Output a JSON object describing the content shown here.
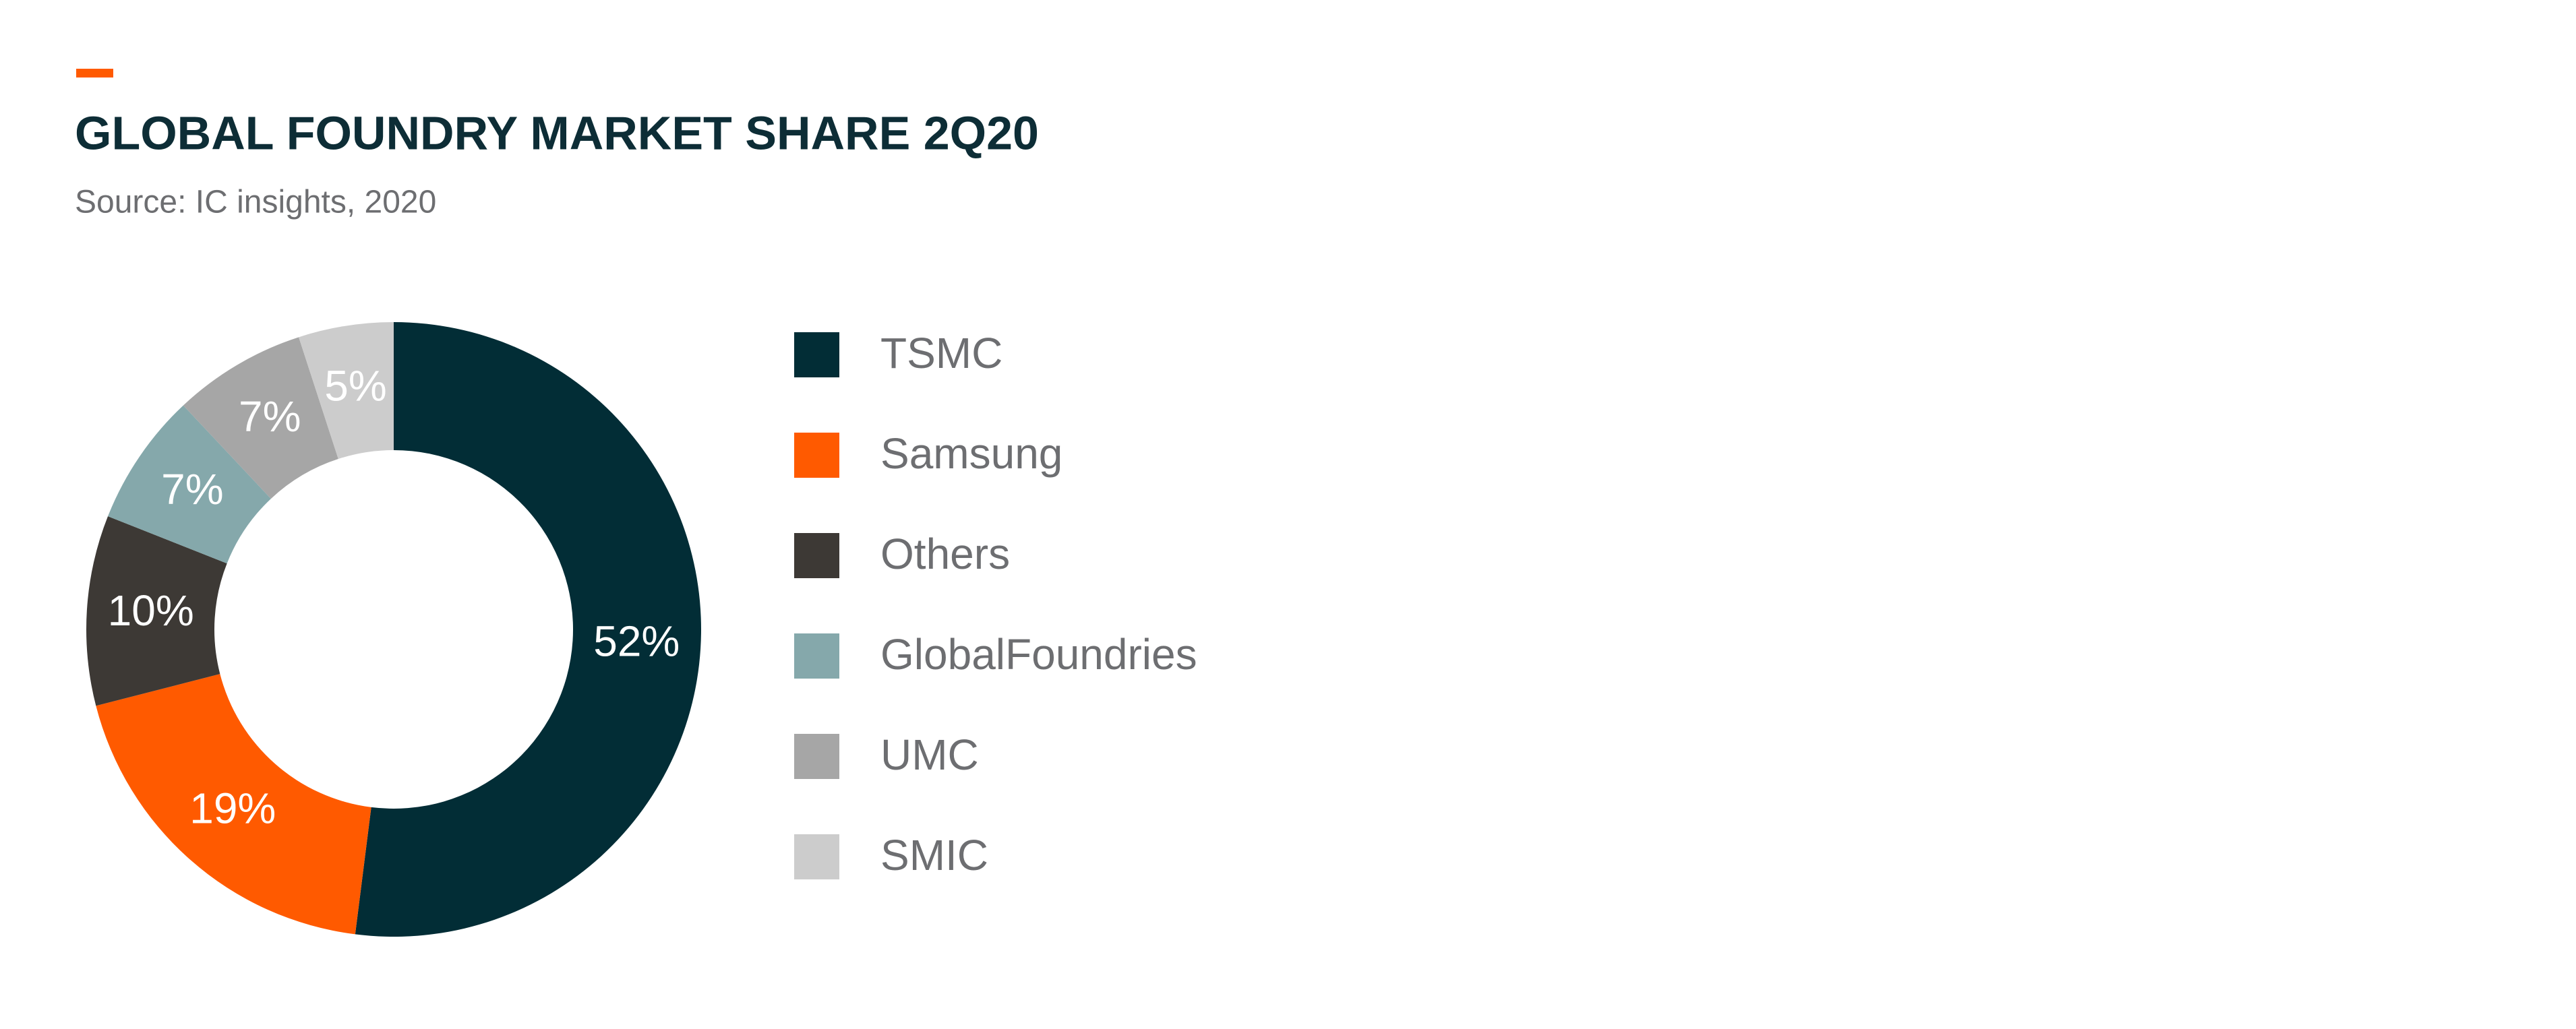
{
  "chart_data": {
    "type": "donut",
    "title": "GLOBAL FOUNDRY MARKET SHARE 2Q20",
    "subtitle": "Source: IC insights, 2020",
    "categories": [
      "TSMC",
      "Samsung",
      "Others",
      "GlobalFoundries",
      "UMC",
      "SMIC"
    ],
    "values": [
      52,
      19,
      10,
      7,
      7,
      5
    ],
    "value_labels": [
      "52%",
      "19%",
      "10%",
      "7%",
      "7%",
      "5%"
    ],
    "colors": [
      "#022d36",
      "#ff5a00",
      "#3d3935",
      "#85a8ab",
      "#a6a6a6",
      "#cccccc"
    ],
    "legend": "right"
  }
}
